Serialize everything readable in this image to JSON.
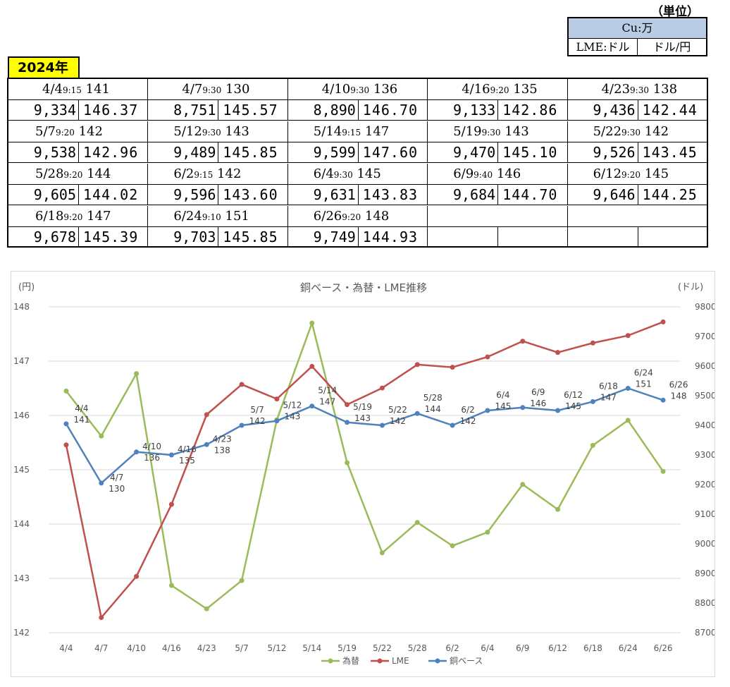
{
  "unit_panel": {
    "heading": "（単位）",
    "cu_label": "Cu:万",
    "lme_label": "LME:ドル",
    "fx_label": "ドル/円"
  },
  "year_label": "2024年",
  "rates": [
    {
      "date": "4/4",
      "time": "9:15",
      "base": "141",
      "lme": "9,334",
      "fx": "146.37"
    },
    {
      "date": "4/7",
      "time": "9:30",
      "base": "130",
      "lme": "8,751",
      "fx": "145.57"
    },
    {
      "date": "4/10",
      "time": "9:30",
      "base": "136",
      "lme": "8,890",
      "fx": "146.70"
    },
    {
      "date": "4/16",
      "time": "9:20",
      "base": "135",
      "lme": "9,133",
      "fx": "142.86"
    },
    {
      "date": "4/23",
      "time": "9:30",
      "base": "138",
      "lme": "9,436",
      "fx": "142.44"
    },
    {
      "date": "5/7",
      "time": "9:20",
      "base": "142",
      "lme": "9,538",
      "fx": "142.96"
    },
    {
      "date": "5/12",
      "time": "9:30",
      "base": "143",
      "lme": "9,489",
      "fx": "145.85"
    },
    {
      "date": "5/14",
      "time": "9:15",
      "base": "147",
      "lme": "9,599",
      "fx": "147.60"
    },
    {
      "date": "5/19",
      "time": "9:30",
      "base": "143",
      "lme": "9,470",
      "fx": "145.10"
    },
    {
      "date": "5/22",
      "time": "9:30",
      "base": "142",
      "lme": "9,526",
      "fx": "143.45"
    },
    {
      "date": "5/28",
      "time": "9:20",
      "base": "144",
      "lme": "9,605",
      "fx": "144.02"
    },
    {
      "date": "6/2",
      "time": "9:15",
      "base": "142",
      "lme": "9,596",
      "fx": "143.60"
    },
    {
      "date": "6/4",
      "time": "9:30",
      "base": "145",
      "lme": "9,631",
      "fx": "143.83"
    },
    {
      "date": "6/9",
      "time": "9:40",
      "base": "146",
      "lme": "9,684",
      "fx": "144.70"
    },
    {
      "date": "6/12",
      "time": "9:20",
      "base": "145",
      "lme": "9,646",
      "fx": "144.25"
    },
    {
      "date": "6/18",
      "time": "9:20",
      "base": "147",
      "lme": "9,678",
      "fx": "145.39"
    },
    {
      "date": "6/24",
      "time": "9:10",
      "base": "151",
      "lme": "9,703",
      "fx": "145.85"
    },
    {
      "date": "6/26",
      "time": "9:20",
      "base": "148",
      "lme": "9,749",
      "fx": "144.93"
    }
  ],
  "chart_data": {
    "type": "line",
    "title": "銅ベース・為替・LME推移",
    "ylabel_left": "(円)",
    "ylabel_right": "(ドル)",
    "ylim_left": [
      142,
      148
    ],
    "ylim_right": [
      8700,
      9800
    ],
    "yticks_left": [
      "142",
      "143",
      "144",
      "145",
      "146",
      "147",
      "148"
    ],
    "yticks_right": [
      "8700",
      "8800",
      "8900",
      "9000",
      "9100",
      "9200",
      "9300",
      "9400",
      "9500",
      "9600",
      "9700",
      "9800"
    ],
    "categories": [
      "4/4",
      "4/7",
      "4/10",
      "4/16",
      "4/23",
      "5/7",
      "5/12",
      "5/14",
      "5/19",
      "5/22",
      "5/28",
      "6/2",
      "6/4",
      "6/9",
      "6/12",
      "6/18",
      "6/24",
      "6/26"
    ],
    "grid": true,
    "legend_position": "bottom",
    "series": [
      {
        "name": "為替",
        "axis": "left",
        "color": "#9bbb59",
        "values": [
          146.45,
          145.62,
          146.77,
          142.87,
          142.44,
          142.96,
          145.92,
          147.7,
          145.13,
          143.47,
          144.03,
          143.6,
          143.85,
          144.73,
          144.27,
          145.45,
          145.91,
          144.97
        ]
      },
      {
        "name": "LME",
        "axis": "right",
        "color": "#c0504d",
        "values": [
          9334,
          8751,
          8890,
          9133,
          9436,
          9538,
          9489,
          9599,
          9470,
          9526,
          9605,
          9596,
          9631,
          9684,
          9646,
          9678,
          9703,
          9749
        ]
      },
      {
        "name": "銅ベース",
        "axis": "right",
        "color": "#4f81bd",
        "values": [
          9405,
          9205,
          9310,
          9300,
          9335,
          9400,
          9415,
          9465,
          9410,
          9400,
          9440,
          9400,
          9450,
          9460,
          9450,
          9480,
          9525,
          9485
        ],
        "labels": [
          "141",
          "130",
          "136",
          "135",
          "138",
          "142",
          "143",
          "147",
          "143",
          "142",
          "144",
          "142",
          "145",
          "146",
          "145",
          "147",
          "151",
          "148"
        ]
      }
    ]
  }
}
